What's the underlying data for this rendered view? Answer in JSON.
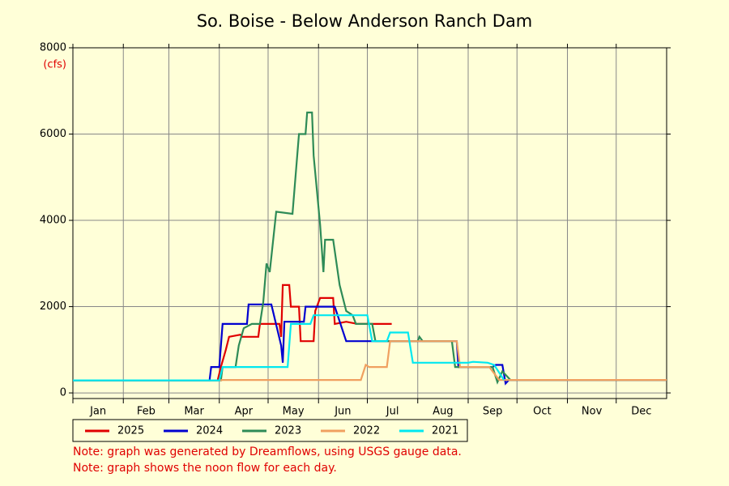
{
  "chart_data": {
    "type": "line",
    "title": "So. Boise - Below Anderson Ranch Dam",
    "y_unit_label": "(cfs)",
    "xlim": [
      0,
      365
    ],
    "xticks": [
      {
        "value": 0,
        "label": "Jan"
      },
      {
        "value": 31,
        "label": "Feb"
      },
      {
        "value": 59,
        "label": "Mar"
      },
      {
        "value": 90,
        "label": "Apr"
      },
      {
        "value": 120,
        "label": "May"
      },
      {
        "value": 151,
        "label": "Jun"
      },
      {
        "value": 181,
        "label": "Jul"
      },
      {
        "value": 212,
        "label": "Aug"
      },
      {
        "value": 243,
        "label": "Sep"
      },
      {
        "value": 273,
        "label": "Oct"
      },
      {
        "value": 304,
        "label": "Nov"
      },
      {
        "value": 334,
        "label": "Dec"
      }
    ],
    "ylim": [
      -130,
      8000
    ],
    "yticks": [
      0,
      2000,
      4000,
      6000,
      8000
    ],
    "grid": true,
    "series": [
      {
        "name": "2025",
        "color": "#e00000",
        "x": [
          0,
          89,
          91,
          94,
          96,
          103,
          104,
          114,
          115,
          127,
          128,
          129,
          133,
          134,
          139,
          140,
          148,
          149,
          152,
          160,
          161,
          168,
          175,
          196
        ],
        "values": [
          290,
          290,
          600,
          1000,
          1300,
          1350,
          1300,
          1300,
          1600,
          1600,
          1300,
          2500,
          2500,
          2000,
          2000,
          1200,
          1200,
          1900,
          2200,
          2200,
          1600,
          1650,
          1600,
          1600
        ]
      },
      {
        "name": "2024",
        "color": "#0000d0",
        "x": [
          0,
          84,
          85,
          90,
          92,
          107,
          108,
          122,
          128,
          129,
          130,
          142,
          143,
          161,
          168,
          236,
          237,
          258,
          260,
          264,
          266,
          268,
          365
        ],
        "values": [
          290,
          290,
          600,
          600,
          1600,
          1600,
          2050,
          2050,
          1100,
          700,
          1650,
          1650,
          2000,
          2000,
          1200,
          1200,
          600,
          600,
          650,
          650,
          220,
          300,
          300
        ]
      },
      {
        "name": "2023",
        "color": "#2e8b57",
        "x": [
          0,
          91,
          92,
          100,
          102,
          105,
          110,
          115,
          117,
          119,
          121,
          125,
          135,
          139,
          143,
          144,
          147,
          148,
          152,
          154,
          155,
          160,
          164,
          168,
          172,
          174,
          184,
          186,
          212,
          213,
          215,
          233,
          235,
          258,
          261,
          264,
          269,
          365
        ],
        "values": [
          290,
          290,
          600,
          600,
          1100,
          1500,
          1600,
          1600,
          2100,
          3000,
          2800,
          4200,
          4150,
          6000,
          6000,
          6500,
          6500,
          5500,
          3900,
          2800,
          3550,
          3550,
          2500,
          1900,
          1800,
          1600,
          1600,
          1200,
          1200,
          1300,
          1200,
          1200,
          600,
          600,
          250,
          500,
          300,
          300
        ]
      },
      {
        "name": "2022",
        "color": "#f0a060",
        "x": [
          0,
          90,
          92,
          177,
          180,
          182,
          193,
          195,
          236,
          238,
          256,
          262,
          365
        ],
        "values": [
          290,
          290,
          300,
          300,
          650,
          600,
          600,
          1200,
          1200,
          600,
          600,
          300,
          300
        ]
      },
      {
        "name": "2021",
        "color": "#00e8f0",
        "x": [
          0,
          90,
          92,
          132,
          134,
          146,
          148,
          181,
          184,
          193,
          195,
          206,
          209,
          243,
          246,
          255,
          259,
          265
        ],
        "values": [
          290,
          290,
          600,
          600,
          1600,
          1600,
          1800,
          1800,
          1200,
          1200,
          1400,
          1400,
          700,
          700,
          720,
          700,
          650,
          300
        ]
      }
    ],
    "notes": [
      "Note: graph was generated by Dreamflows, using USGS gauge data.",
      "Note: graph shows the noon flow for each day."
    ]
  }
}
